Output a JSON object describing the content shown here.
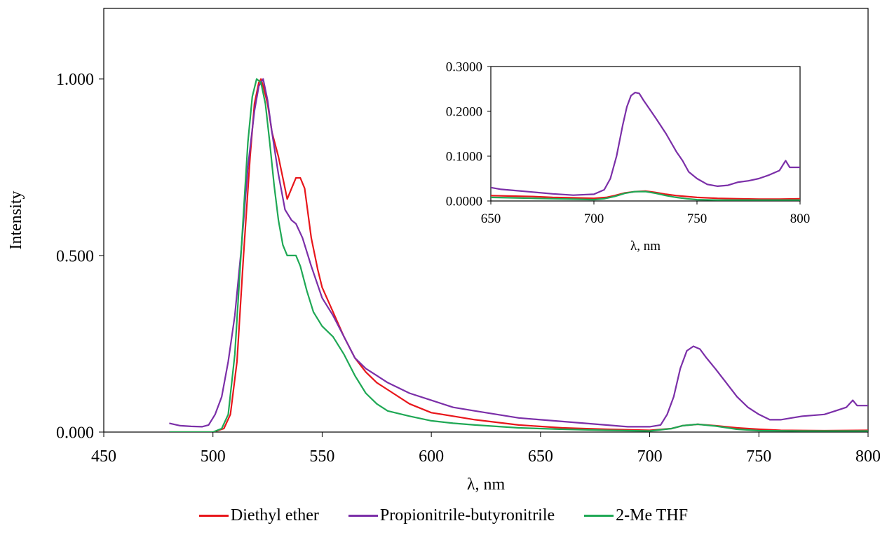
{
  "chart_data": [
    {
      "type": "line",
      "title": "",
      "xlabel": "λ, nm",
      "ylabel": "Intensity",
      "xlim": [
        450,
        800
      ],
      "ylim": [
        0,
        1.2
      ],
      "x_ticks": [
        450,
        500,
        550,
        600,
        650,
        700,
        750,
        800
      ],
      "x_tick_labels": [
        "450",
        "500",
        "550",
        "600",
        "650",
        "700",
        "750",
        "800"
      ],
      "y_ticks": [
        0,
        0.5,
        1.0
      ],
      "y_tick_labels": [
        "0.000",
        "0.500",
        "1.000"
      ],
      "grid": false,
      "legend_position": "bottom",
      "series": [
        {
          "name": "Diethyl ether",
          "color": "#e8161b",
          "points": [
            [
              480,
              0.0
            ],
            [
              500,
              0.0
            ],
            [
              505,
              0.01
            ],
            [
              508,
              0.05
            ],
            [
              511,
              0.2
            ],
            [
              514,
              0.5
            ],
            [
              517,
              0.78
            ],
            [
              519,
              0.93
            ],
            [
              521,
              0.99
            ],
            [
              522,
              1.0
            ],
            [
              523,
              0.98
            ],
            [
              525,
              0.93
            ],
            [
              527,
              0.85
            ],
            [
              530,
              0.78
            ],
            [
              533,
              0.69
            ],
            [
              534,
              0.66
            ],
            [
              536,
              0.69
            ],
            [
              538,
              0.72
            ],
            [
              540,
              0.72
            ],
            [
              542,
              0.69
            ],
            [
              545,
              0.55
            ],
            [
              548,
              0.46
            ],
            [
              550,
              0.41
            ],
            [
              555,
              0.34
            ],
            [
              560,
              0.27
            ],
            [
              565,
              0.21
            ],
            [
              570,
              0.17
            ],
            [
              575,
              0.14
            ],
            [
              580,
              0.12
            ],
            [
              590,
              0.08
            ],
            [
              600,
              0.055
            ],
            [
              610,
              0.045
            ],
            [
              620,
              0.035
            ],
            [
              640,
              0.02
            ],
            [
              660,
              0.012
            ],
            [
              680,
              0.008
            ],
            [
              700,
              0.005
            ],
            [
              710,
              0.01
            ],
            [
              715,
              0.018
            ],
            [
              722,
              0.022
            ],
            [
              730,
              0.018
            ],
            [
              740,
              0.012
            ],
            [
              750,
              0.008
            ],
            [
              760,
              0.005
            ],
            [
              780,
              0.004
            ],
            [
              800,
              0.005
            ]
          ]
        },
        {
          "name": "Propionitrile-butyronitrile",
          "color": "#7b2fa8",
          "points": [
            [
              480,
              0.025
            ],
            [
              485,
              0.018
            ],
            [
              490,
              0.016
            ],
            [
              495,
              0.015
            ],
            [
              498,
              0.02
            ],
            [
              501,
              0.05
            ],
            [
              504,
              0.1
            ],
            [
              507,
              0.2
            ],
            [
              510,
              0.33
            ],
            [
              513,
              0.52
            ],
            [
              516,
              0.75
            ],
            [
              519,
              0.91
            ],
            [
              521,
              0.98
            ],
            [
              523,
              1.0
            ],
            [
              525,
              0.94
            ],
            [
              527,
              0.85
            ],
            [
              530,
              0.73
            ],
            [
              533,
              0.63
            ],
            [
              536,
              0.6
            ],
            [
              538,
              0.59
            ],
            [
              541,
              0.55
            ],
            [
              545,
              0.47
            ],
            [
              550,
              0.38
            ],
            [
              555,
              0.33
            ],
            [
              560,
              0.27
            ],
            [
              565,
              0.21
            ],
            [
              570,
              0.18
            ],
            [
              575,
              0.16
            ],
            [
              580,
              0.14
            ],
            [
              590,
              0.11
            ],
            [
              600,
              0.09
            ],
            [
              610,
              0.07
            ],
            [
              620,
              0.06
            ],
            [
              630,
              0.05
            ],
            [
              640,
              0.04
            ],
            [
              650,
              0.035
            ],
            [
              660,
              0.03
            ],
            [
              670,
              0.025
            ],
            [
              680,
              0.02
            ],
            [
              690,
              0.015
            ],
            [
              700,
              0.015
            ],
            [
              705,
              0.02
            ],
            [
              708,
              0.05
            ],
            [
              711,
              0.1
            ],
            [
              714,
              0.18
            ],
            [
              717,
              0.23
            ],
            [
              720,
              0.243
            ],
            [
              723,
              0.235
            ],
            [
              726,
              0.21
            ],
            [
              730,
              0.18
            ],
            [
              735,
              0.14
            ],
            [
              740,
              0.1
            ],
            [
              745,
              0.07
            ],
            [
              750,
              0.05
            ],
            [
              755,
              0.035
            ],
            [
              760,
              0.035
            ],
            [
              765,
              0.04
            ],
            [
              770,
              0.045
            ],
            [
              780,
              0.05
            ],
            [
              785,
              0.06
            ],
            [
              790,
              0.07
            ],
            [
              793,
              0.09
            ],
            [
              795,
              0.075
            ],
            [
              800,
              0.075
            ]
          ]
        },
        {
          "name": "2-Me THF",
          "color": "#1fa855",
          "points": [
            [
              480,
              0.0
            ],
            [
              500,
              0.0
            ],
            [
              504,
              0.01
            ],
            [
              507,
              0.05
            ],
            [
              510,
              0.22
            ],
            [
              513,
              0.52
            ],
            [
              516,
              0.82
            ],
            [
              518,
              0.95
            ],
            [
              520,
              1.0
            ],
            [
              522,
              0.99
            ],
            [
              524,
              0.93
            ],
            [
              526,
              0.82
            ],
            [
              528,
              0.7
            ],
            [
              530,
              0.6
            ],
            [
              532,
              0.53
            ],
            [
              534,
              0.5
            ],
            [
              536,
              0.5
            ],
            [
              538,
              0.5
            ],
            [
              540,
              0.47
            ],
            [
              543,
              0.4
            ],
            [
              546,
              0.34
            ],
            [
              550,
              0.3
            ],
            [
              555,
              0.27
            ],
            [
              560,
              0.22
            ],
            [
              565,
              0.16
            ],
            [
              570,
              0.11
            ],
            [
              575,
              0.08
            ],
            [
              580,
              0.06
            ],
            [
              590,
              0.045
            ],
            [
              600,
              0.032
            ],
            [
              610,
              0.025
            ],
            [
              620,
              0.02
            ],
            [
              640,
              0.012
            ],
            [
              660,
              0.008
            ],
            [
              680,
              0.005
            ],
            [
              700,
              0.003
            ],
            [
              710,
              0.01
            ],
            [
              715,
              0.018
            ],
            [
              722,
              0.022
            ],
            [
              730,
              0.017
            ],
            [
              740,
              0.008
            ],
            [
              750,
              0.004
            ],
            [
              770,
              0.003
            ],
            [
              800,
              0.003
            ]
          ]
        }
      ]
    },
    {
      "type": "line",
      "title": "",
      "xlabel": "λ, nm",
      "ylabel": "",
      "xlim": [
        650,
        800
      ],
      "ylim": [
        0,
        0.3
      ],
      "x_ticks": [
        650,
        700,
        750,
        800
      ],
      "x_tick_labels": [
        "650",
        "700",
        "750",
        "800"
      ],
      "y_ticks": [
        0,
        0.1,
        0.2,
        0.3
      ],
      "y_tick_labels": [
        "0.0000",
        "0.1000",
        "0.2000",
        "0.3000"
      ],
      "grid": false,
      "legend_position": "none",
      "series": [
        {
          "color": "#e8161b",
          "points": [
            [
              650,
              0.012
            ],
            [
              660,
              0.011
            ],
            [
              670,
              0.01
            ],
            [
              680,
              0.008
            ],
            [
              690,
              0.007
            ],
            [
              700,
              0.006
            ],
            [
              706,
              0.008
            ],
            [
              710,
              0.012
            ],
            [
              715,
              0.018
            ],
            [
              720,
              0.021
            ],
            [
              725,
              0.022
            ],
            [
              730,
              0.019
            ],
            [
              735,
              0.015
            ],
            [
              740,
              0.012
            ],
            [
              745,
              0.01
            ],
            [
              750,
              0.008
            ],
            [
              760,
              0.006
            ],
            [
              770,
              0.005
            ],
            [
              780,
              0.004
            ],
            [
              790,
              0.004
            ],
            [
              800,
              0.005
            ]
          ]
        },
        {
          "color": "#7b2fa8",
          "points": [
            [
              650,
              0.03
            ],
            [
              655,
              0.026
            ],
            [
              660,
              0.024
            ],
            [
              670,
              0.02
            ],
            [
              680,
              0.016
            ],
            [
              690,
              0.013
            ],
            [
              700,
              0.015
            ],
            [
              705,
              0.025
            ],
            [
              708,
              0.05
            ],
            [
              711,
              0.1
            ],
            [
              714,
              0.17
            ],
            [
              716,
              0.21
            ],
            [
              718,
              0.235
            ],
            [
              720,
              0.242
            ],
            [
              722,
              0.24
            ],
            [
              724,
              0.225
            ],
            [
              727,
              0.205
            ],
            [
              730,
              0.185
            ],
            [
              735,
              0.15
            ],
            [
              740,
              0.11
            ],
            [
              743,
              0.09
            ],
            [
              746,
              0.065
            ],
            [
              750,
              0.05
            ],
            [
              755,
              0.037
            ],
            [
              760,
              0.033
            ],
            [
              765,
              0.035
            ],
            [
              770,
              0.042
            ],
            [
              775,
              0.045
            ],
            [
              780,
              0.05
            ],
            [
              785,
              0.058
            ],
            [
              790,
              0.068
            ],
            [
              793,
              0.09
            ],
            [
              795,
              0.075
            ],
            [
              800,
              0.075
            ]
          ]
        },
        {
          "color": "#1fa855",
          "points": [
            [
              650,
              0.008
            ],
            [
              660,
              0.007
            ],
            [
              670,
              0.006
            ],
            [
              680,
              0.005
            ],
            [
              690,
              0.004
            ],
            [
              700,
              0.003
            ],
            [
              705,
              0.005
            ],
            [
              710,
              0.01
            ],
            [
              715,
              0.017
            ],
            [
              720,
              0.021
            ],
            [
              725,
              0.021
            ],
            [
              730,
              0.017
            ],
            [
              735,
              0.012
            ],
            [
              740,
              0.008
            ],
            [
              745,
              0.005
            ],
            [
              750,
              0.003
            ],
            [
              760,
              0.002
            ],
            [
              780,
              0.002
            ],
            [
              800,
              0.002
            ]
          ]
        }
      ]
    }
  ]
}
